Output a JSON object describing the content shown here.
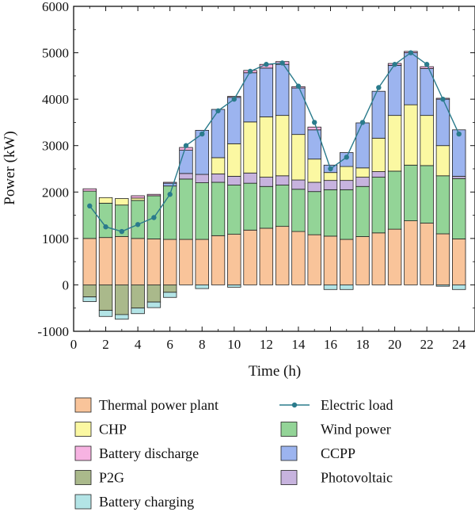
{
  "chart_data": {
    "type": "bar",
    "subtype": "stacked bar with line",
    "title": "",
    "xlabel": "Time (h)",
    "ylabel": "Power (kW)",
    "xlim": [
      0,
      25
    ],
    "ylim": [
      -1000,
      6000
    ],
    "x_ticks": [
      0,
      2,
      4,
      6,
      8,
      10,
      12,
      14,
      16,
      18,
      20,
      22,
      24
    ],
    "y_ticks": [
      -1000,
      0,
      1000,
      2000,
      3000,
      4000,
      5000,
      6000
    ],
    "grid": false,
    "legend_position": "bottom",
    "x": [
      1,
      2,
      3,
      4,
      5,
      6,
      7,
      8,
      9,
      10,
      11,
      12,
      13,
      14,
      15,
      16,
      17,
      18,
      19,
      20,
      21,
      22,
      23,
      24
    ],
    "positive_series": [
      {
        "name": "Thermal power plant",
        "color": "#f9c49a",
        "values": [
          1000,
          1020,
          1040,
          1000,
          990,
          980,
          980,
          980,
          1060,
          1090,
          1180,
          1220,
          1260,
          1150,
          1080,
          1050,
          980,
          1040,
          1120,
          1200,
          1380,
          1330,
          1100,
          990
        ]
      },
      {
        "name": "Wind power",
        "color": "#93d497",
        "values": [
          1020,
          740,
          680,
          820,
          930,
          1150,
          1300,
          1220,
          1150,
          1060,
          1010,
          900,
          890,
          910,
          930,
          1000,
          1070,
          1080,
          1200,
          1250,
          1200,
          1240,
          1250,
          1300
        ]
      },
      {
        "name": "Photovoltaic",
        "color": "#c7b3de",
        "values": [
          0,
          0,
          0,
          0,
          0,
          0,
          120,
          180,
          180,
          190,
          220,
          200,
          200,
          200,
          200,
          200,
          200,
          200,
          120,
          0,
          0,
          0,
          0,
          50
        ]
      },
      {
        "name": "CHP",
        "color": "#fbf8a2",
        "values": [
          0,
          120,
          140,
          50,
          0,
          0,
          0,
          0,
          350,
          700,
          1100,
          1300,
          1300,
          980,
          500,
          170,
          300,
          200,
          720,
          1200,
          1300,
          1080,
          650,
          0
        ]
      },
      {
        "name": "CCPP",
        "color": "#9cb4ef",
        "values": [
          0,
          0,
          0,
          0,
          0,
          60,
          500,
          950,
          1040,
          1000,
          1060,
          1050,
          1100,
          1000,
          630,
          160,
          300,
          970,
          1010,
          1080,
          1120,
          1010,
          1000,
          1000
        ]
      },
      {
        "name": "Battery discharge",
        "color": "#f7b3e2",
        "values": [
          50,
          0,
          0,
          50,
          30,
          20,
          60,
          0,
          0,
          20,
          50,
          80,
          60,
          30,
          60,
          0,
          0,
          0,
          0,
          40,
          30,
          40,
          20,
          0
        ]
      }
    ],
    "negative_series": [
      {
        "name": "P2G",
        "color": "#aab98b",
        "values": [
          -260,
          -550,
          -640,
          -500,
          -370,
          -160,
          0,
          0,
          0,
          0,
          0,
          0,
          0,
          0,
          0,
          0,
          0,
          0,
          0,
          0,
          0,
          0,
          0,
          0
        ]
      },
      {
        "name": "Battery charging",
        "color": "#b3e4e6",
        "values": [
          -100,
          -130,
          -100,
          -120,
          -120,
          -110,
          0,
          -80,
          0,
          -50,
          0,
          0,
          0,
          0,
          0,
          -100,
          -100,
          0,
          0,
          0,
          0,
          0,
          -30,
          -100
        ]
      }
    ],
    "line_series": {
      "name": "Electric load",
      "color": "#2a7b8c",
      "values": [
        1700,
        1250,
        1150,
        1300,
        1450,
        1950,
        3000,
        3250,
        3750,
        4000,
        4600,
        4750,
        4780,
        4280,
        3500,
        2500,
        2750,
        3500,
        4250,
        4750,
        5000,
        4750,
        4000,
        3250
      ]
    },
    "legend_order": [
      "Thermal power plant",
      "Electric load",
      "CHP",
      "Wind power",
      "Battery discharge",
      "CCPP",
      "P2G",
      "Photovoltaic",
      "Battery charging"
    ]
  }
}
